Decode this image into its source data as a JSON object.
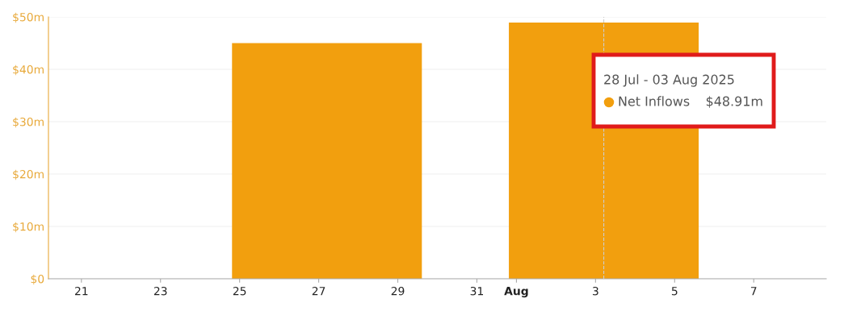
{
  "chart_data": {
    "type": "bar",
    "x": [
      "2025-07-27T05:00",
      "2025-08-03T05:00"
    ],
    "series": [
      {
        "name": "Net Inflows",
        "color": "#f29f0e",
        "values": [
          45,
          48.91
        ]
      }
    ],
    "value_labels": [
      null,
      "$48.91m"
    ],
    "annotations": [
      "28 Jul - 03 Aug 2025"
    ],
    "xlim": [
      "2025-07-20T04:00",
      "2025-08-08T20:00"
    ],
    "xticks": [
      {
        "value": "2025-07-21",
        "label": "21"
      },
      {
        "value": "2025-07-23",
        "label": "23"
      },
      {
        "value": "2025-07-25",
        "label": "25"
      },
      {
        "value": "2025-07-27",
        "label": "27"
      },
      {
        "value": "2025-07-29",
        "label": "29"
      },
      {
        "value": "2025-07-31",
        "label": "31"
      },
      {
        "value": "2025-08-01",
        "label": "Aug"
      },
      {
        "value": "2025-08-03",
        "label": "3"
      },
      {
        "value": "2025-08-05",
        "label": "5"
      },
      {
        "value": "2025-08-07",
        "label": "7"
      }
    ],
    "ylim": [
      0,
      50
    ],
    "yticks": [
      {
        "value": 0,
        "label": "$0"
      },
      {
        "value": 10,
        "label": "$10m"
      },
      {
        "value": 20,
        "label": "$20m"
      },
      {
        "value": 30,
        "label": "$30m"
      },
      {
        "value": 40,
        "label": "$40m"
      },
      {
        "value": 50,
        "label": "$50m"
      }
    ],
    "grid": "y",
    "legend": "top right",
    "ref_lines": [
      {
        "axis": "x",
        "value": "2025-08-03T05:00",
        "label": null,
        "color": "#cccccc",
        "line_style": "dashed"
      }
    ]
  }
}
